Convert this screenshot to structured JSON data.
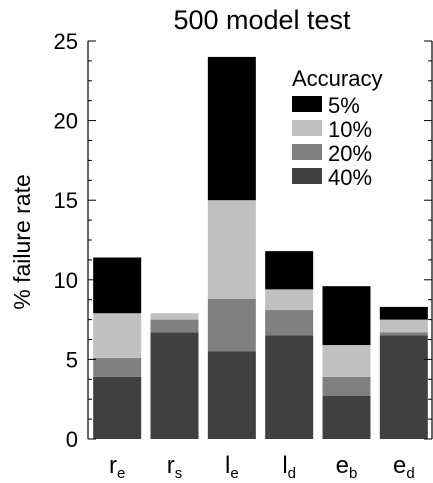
{
  "chart_data": {
    "type": "bar",
    "stacked": true,
    "title": "500 model test",
    "xlabel": "",
    "ylabel": "% failure rate",
    "ylim": [
      0,
      25
    ],
    "yticks": [
      "0",
      "5",
      "10",
      "15",
      "20",
      "25"
    ],
    "grid": false,
    "legend": {
      "title": "Accuracy",
      "placement": "top-right",
      "entries": [
        "5%",
        "10%",
        "20%",
        "40%"
      ]
    },
    "categories": [
      {
        "base": "r",
        "sub": "e"
      },
      {
        "base": "r",
        "sub": "s"
      },
      {
        "base": "l",
        "sub": "e"
      },
      {
        "base": "l",
        "sub": "d"
      },
      {
        "base": "e",
        "sub": "b"
      },
      {
        "base": "e",
        "sub": "d"
      }
    ],
    "series": [
      {
        "name": "40%",
        "color": "#404040",
        "values": [
          3.9,
          6.7,
          5.5,
          6.5,
          2.7,
          6.5
        ]
      },
      {
        "name": "20%",
        "color": "#808080",
        "values": [
          1.2,
          0.8,
          3.3,
          1.6,
          1.2,
          0.2
        ]
      },
      {
        "name": "10%",
        "color": "#c0c0c0",
        "values": [
          2.8,
          0.4,
          6.2,
          1.3,
          2.0,
          0.8
        ]
      },
      {
        "name": "5%",
        "color": "#000000",
        "values": [
          3.5,
          0.0,
          9.0,
          2.4,
          3.7,
          0.8
        ]
      }
    ]
  }
}
